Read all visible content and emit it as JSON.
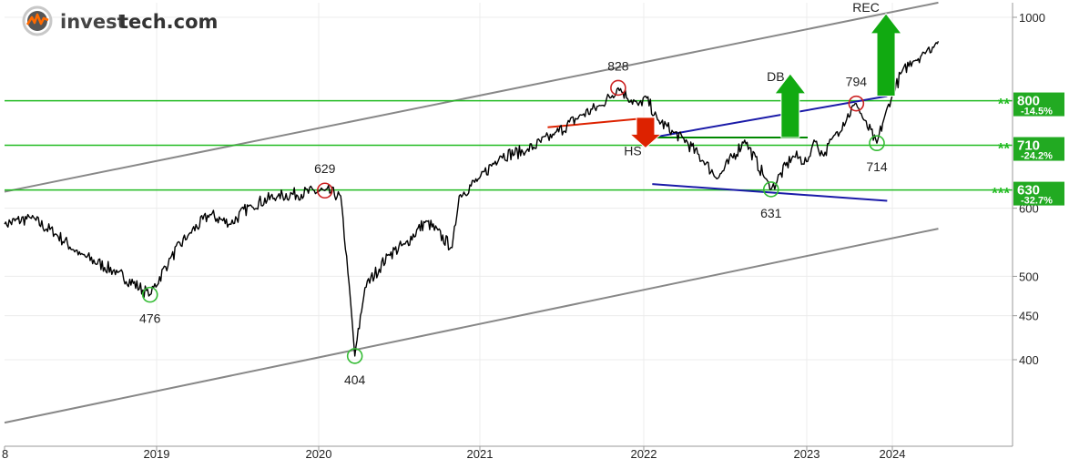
{
  "logo": {
    "part1": "invest",
    "part2": "tech.com"
  },
  "chart_data": {
    "type": "line",
    "title": "",
    "y_scale": "log",
    "ylim": [
      322,
      1040
    ],
    "x_tick_labels": [
      "8",
      "2019",
      "2020",
      "2021",
      "2022",
      "2023",
      "2024"
    ],
    "y_tick_labels": [
      "400",
      "450",
      "500",
      "600",
      "1000"
    ],
    "grid": true,
    "series": [
      {
        "values": [
          {
            "x": "2018-07-01",
            "y": 575
          },
          {
            "x": "2018-08-01",
            "y": 585
          },
          {
            "x": "2018-09-01",
            "y": 560
          },
          {
            "x": "2018-10-01",
            "y": 530
          },
          {
            "x": "2018-11-15",
            "y": 505
          },
          {
            "x": "2018-12-24",
            "y": 476
          },
          {
            "x": "2019-02-01",
            "y": 525
          },
          {
            "x": "2019-03-15",
            "y": 560
          },
          {
            "x": "2019-05-01",
            "y": 590
          },
          {
            "x": "2019-06-15",
            "y": 575
          },
          {
            "x": "2019-08-01",
            "y": 605
          },
          {
            "x": "2019-10-01",
            "y": 620
          },
          {
            "x": "2020-01-15",
            "y": 629
          },
          {
            "x": "2020-02-20",
            "y": 620
          },
          {
            "x": "2020-03-10",
            "y": 490
          },
          {
            "x": "2020-03-23",
            "y": 404
          },
          {
            "x": "2020-04-15",
            "y": 485
          },
          {
            "x": "2020-06-08",
            "y": 530
          },
          {
            "x": "2020-07-15",
            "y": 545
          },
          {
            "x": "2020-09-01",
            "y": 580
          },
          {
            "x": "2020-10-30",
            "y": 540
          },
          {
            "x": "2020-11-15",
            "y": 620
          },
          {
            "x": "2020-12-31",
            "y": 650
          },
          {
            "x": "2021-02-15",
            "y": 690
          },
          {
            "x": "2021-04-15",
            "y": 700
          },
          {
            "x": "2021-06-15",
            "y": 730
          },
          {
            "x": "2021-08-15",
            "y": 770
          },
          {
            "x": "2021-09-30",
            "y": 790
          },
          {
            "x": "2021-11-05",
            "y": 828
          },
          {
            "x": "2021-12-20",
            "y": 790
          },
          {
            "x": "2022-01-05",
            "y": 810
          },
          {
            "x": "2022-02-01",
            "y": 760
          },
          {
            "x": "2022-03-08",
            "y": 735
          },
          {
            "x": "2022-03-29",
            "y": 725
          },
          {
            "x": "2022-05-15",
            "y": 680
          },
          {
            "x": "2022-06-16",
            "y": 650
          },
          {
            "x": "2022-08-15",
            "y": 720
          },
          {
            "x": "2022-09-30",
            "y": 650
          },
          {
            "x": "2022-10-13",
            "y": 631
          },
          {
            "x": "2022-12-01",
            "y": 690
          },
          {
            "x": "2023-01-05",
            "y": 680
          },
          {
            "x": "2023-02-01",
            "y": 720
          },
          {
            "x": "2023-03-15",
            "y": 690
          },
          {
            "x": "2023-05-01",
            "y": 730
          },
          {
            "x": "2023-07-31",
            "y": 794
          },
          {
            "x": "2023-09-01",
            "y": 760
          },
          {
            "x": "2023-10-27",
            "y": 714
          },
          {
            "x": "2023-12-01",
            "y": 770
          },
          {
            "x": "2023-12-31",
            "y": 810
          },
          {
            "x": "2024-02-15",
            "y": 870
          },
          {
            "x": "2024-04-01",
            "y": 890
          },
          {
            "x": "2024-05-15",
            "y": 910
          },
          {
            "x": "2024-07-01",
            "y": 930
          },
          {
            "x": "2024-07-15",
            "y": 938
          }
        ]
      }
    ],
    "support_resistance": [
      {
        "level": 800,
        "label": "800",
        "pct": "-14.5%",
        "stars": "**"
      },
      {
        "level": 710,
        "label": "710",
        "pct": "-24.2%",
        "stars": "**"
      },
      {
        "level": 630,
        "label": "630",
        "pct": "-32.7%",
        "stars": "***"
      }
    ],
    "trend_channel": {
      "upper": [
        {
          "x": "2018-07-01",
          "y": 627
        },
        {
          "x": "2024-07-15",
          "y": 1040
        }
      ],
      "lower": [
        {
          "x": "2018-07-01",
          "y": 338
        },
        {
          "x": "2024-07-15",
          "y": 568
        }
      ]
    },
    "pattern_lines": [
      {
        "name": "neckline-hs",
        "color": "#dd2200",
        "points": [
          {
            "x": "2021-06-01",
            "y": 745
          },
          {
            "x": "2021-12-20",
            "y": 762
          }
        ]
      },
      {
        "name": "upper-trend-blue",
        "color": "#1a1aa8",
        "points": [
          {
            "x": "2022-01-20",
            "y": 725
          },
          {
            "x": "2023-12-10",
            "y": 810
          }
        ]
      },
      {
        "name": "lower-trend-blue",
        "color": "#1a1aa8",
        "points": [
          {
            "x": "2022-01-20",
            "y": 640
          },
          {
            "x": "2023-12-10",
            "y": 612
          }
        ]
      },
      {
        "name": "db-neckline",
        "color": "#008800",
        "points": [
          {
            "x": "2022-01-20",
            "y": 725
          },
          {
            "x": "2023-01-05",
            "y": 725
          }
        ]
      }
    ],
    "annotations": [
      {
        "type": "top",
        "label": "629",
        "x": "2020-01-15",
        "y": 629
      },
      {
        "type": "top",
        "label": "828",
        "x": "2021-11-05",
        "y": 828
      },
      {
        "type": "top",
        "label": "794",
        "x": "2023-07-31",
        "y": 794
      },
      {
        "type": "bottom",
        "label": "476",
        "x": "2018-12-24",
        "y": 476
      },
      {
        "type": "bottom",
        "label": "404",
        "x": "2020-03-23",
        "y": 404
      },
      {
        "type": "bottom",
        "label": "631",
        "x": "2022-10-13",
        "y": 631
      },
      {
        "type": "bottom",
        "label": "714",
        "x": "2023-10-27",
        "y": 714
      }
    ],
    "signals": [
      {
        "label": "HS",
        "direction": "down",
        "color": "#dd2200",
        "x": "2022-01-05",
        "from": 765,
        "to": 705
      },
      {
        "label": "DB",
        "direction": "up",
        "color": "#11aa11",
        "x": "2022-11-25",
        "from": 725,
        "to": 860
      },
      {
        "label": "REC",
        "direction": "up",
        "color": "#11aa11",
        "x": "2023-12-05",
        "from": 810,
        "to": 1010
      }
    ],
    "colors": {
      "price": "#000000",
      "support": "#22bb22",
      "channel": "#888888",
      "top_circle": "#cc2222",
      "bottom_circle": "#33bb33",
      "label_bg": "#22aa22"
    }
  }
}
